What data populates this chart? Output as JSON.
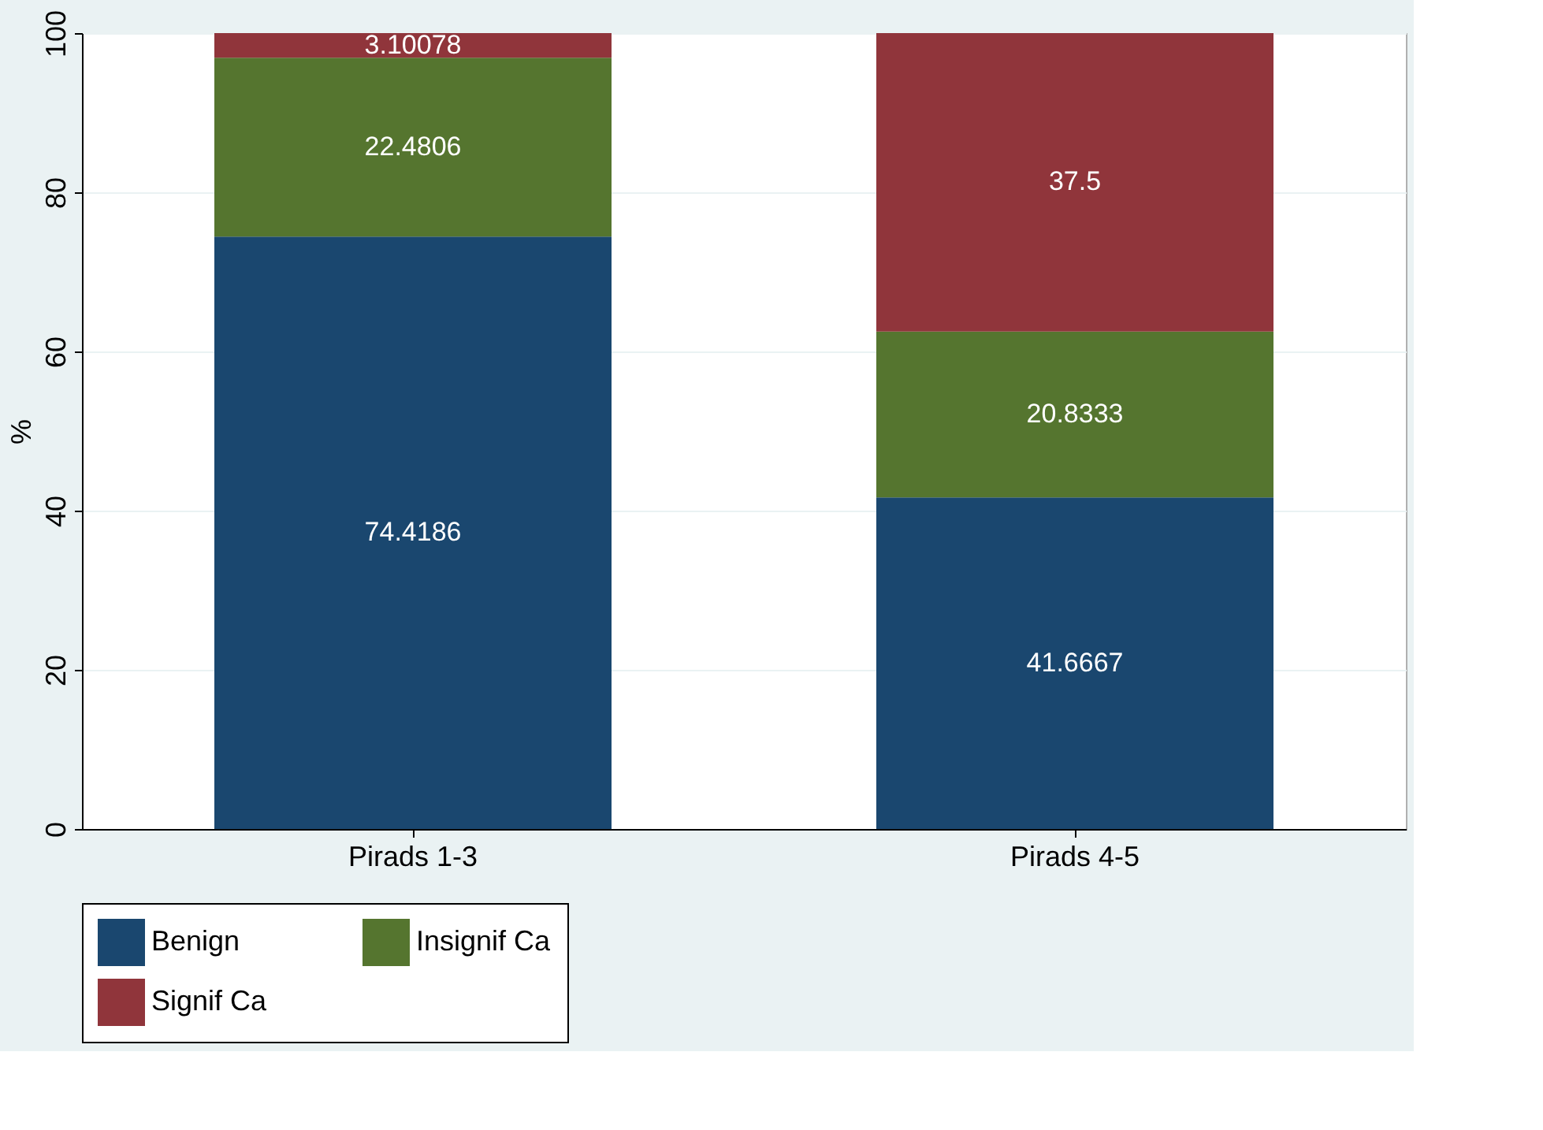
{
  "chart_data": {
    "type": "bar",
    "stacked": true,
    "ylabel": "%",
    "categories": [
      "Pirads 1-3",
      "Pirads 4-5"
    ],
    "series": [
      {
        "name": "Benign",
        "color": "#1a476f",
        "values": [
          74.4186,
          41.6667
        ]
      },
      {
        "name": "Insignif Ca",
        "color": "#55752f",
        "values": [
          22.4806,
          20.8333
        ]
      },
      {
        "name": "Signif Ca",
        "color": "#90353b",
        "values": [
          3.10078,
          37.5
        ]
      }
    ],
    "ylim": [
      0,
      100
    ],
    "yticks": [
      0,
      20,
      40,
      60,
      80,
      100
    ],
    "grid": "y",
    "legend": "bottom",
    "data_labels": true
  }
}
